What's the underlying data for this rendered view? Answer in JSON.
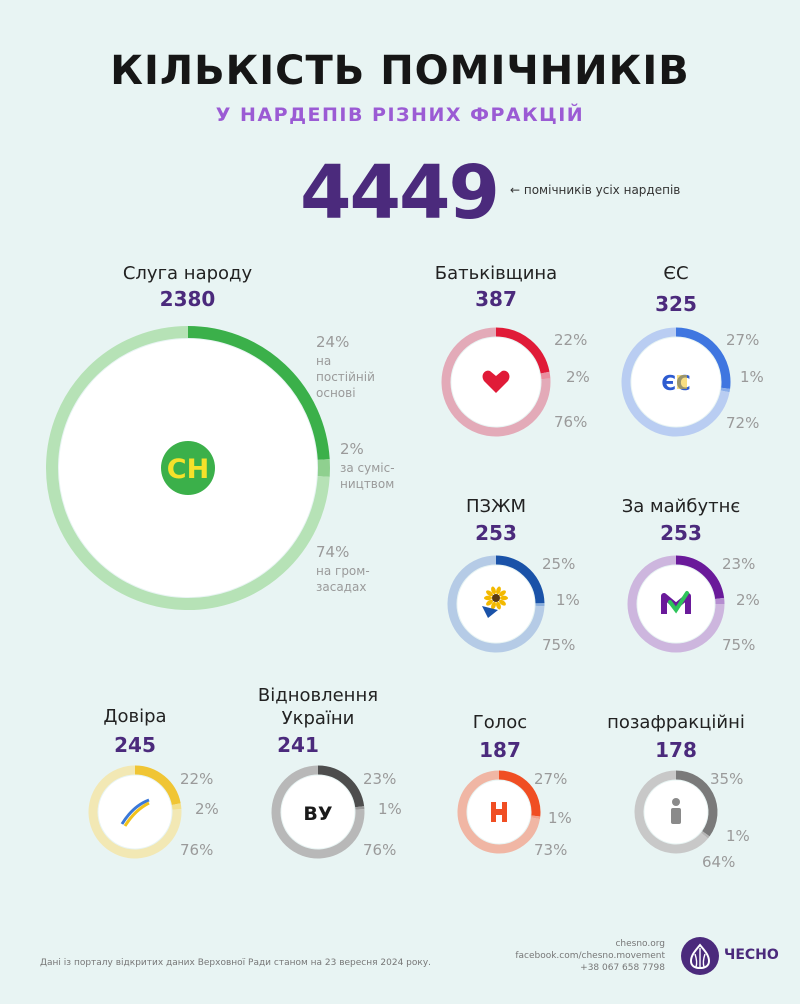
{
  "title": "КІЛЬКІСТЬ ПОМІЧНИКІВ",
  "subtitle": "У НАРДЕПІВ РІЗНИХ ФРАКЦІЙ",
  "total": {
    "value": "4449",
    "note": "← помічників усіх нардепів"
  },
  "colors": {
    "background": "#e8f4f3",
    "accent": "#4b2a7c",
    "subtitle": "#9b5bd4"
  },
  "chart_data": {
    "type": "pie",
    "title": "КІЛЬКІСТЬ ПОМІЧНИКІВ",
    "subtitle": "У НАРДЕПІВ РІЗНИХ ФРАКЦІЙ",
    "legend_categories": [
      "на постійній основі",
      "за суміс-ництвом",
      "на гром-засадах"
    ],
    "factions": [
      {
        "name": "Слуга народу",
        "count": 2380,
        "percents": [
          24,
          2,
          74
        ],
        "labels": [
          "24%",
          "2%",
          "74%"
        ],
        "notes": [
          "на постійній основі",
          "за суміс-ництвом",
          "на гром-засадах"
        ],
        "colors": [
          "#3bb04a",
          "#8fd08f",
          "#b6e2b6"
        ],
        "logo_text": "СН",
        "logo_icon": "sluha-narodu-logo"
      },
      {
        "name": "Батьківщина",
        "count": 387,
        "percents": [
          22,
          2,
          76
        ],
        "labels": [
          "22%",
          "2%",
          "76%"
        ],
        "colors": [
          "#e01b38",
          "#e98fa0",
          "#e3aab8"
        ],
        "logo_text": "",
        "logo_icon": "heart-icon"
      },
      {
        "name": "ЄС",
        "count": 325,
        "percents": [
          27,
          1,
          72
        ],
        "labels": [
          "27%",
          "1%",
          "72%"
        ],
        "colors": [
          "#3f76e0",
          "#8aaeea",
          "#b9cdf2"
        ],
        "logo_text": "ЄС",
        "logo_icon": "eu-logo"
      },
      {
        "name": "ПЗЖМ",
        "count": 253,
        "percents": [
          25,
          1,
          75
        ],
        "labels": [
          "25%",
          "1%",
          "75%"
        ],
        "colors": [
          "#1a52a8",
          "#8aaedc",
          "#b5cbe6"
        ],
        "logo_text": "",
        "logo_icon": "sunflower-icon"
      },
      {
        "name": "За майбутнє",
        "count": 253,
        "percents": [
          23,
          2,
          75
        ],
        "labels": [
          "23%",
          "2%",
          "75%"
        ],
        "colors": [
          "#6a1a9a",
          "#b58dd0",
          "#cdb6de"
        ],
        "logo_text": "",
        "logo_icon": "checkmark-m-icon"
      },
      {
        "name": "Довіра",
        "count": 245,
        "percents": [
          22,
          2,
          76
        ],
        "labels": [
          "22%",
          "2%",
          "76%"
        ],
        "colors": [
          "#f0c534",
          "#f3e08c",
          "#f2e8b4"
        ],
        "logo_text": "",
        "logo_icon": "swoosh-icon"
      },
      {
        "name": "Відновлення України",
        "count": 241,
        "percents": [
          23,
          1,
          76
        ],
        "labels": [
          "23%",
          "1%",
          "76%"
        ],
        "colors": [
          "#4d4d4d",
          "#9a9a9a",
          "#b8b8b8"
        ],
        "logo_text": "ВУ",
        "logo_icon": "vu-logo"
      },
      {
        "name": "Голос",
        "count": 187,
        "percents": [
          27,
          1,
          73
        ],
        "labels": [
          "27%",
          "1%",
          "73%"
        ],
        "colors": [
          "#f04e23",
          "#f2a08a",
          "#f0b6a4"
        ],
        "logo_text": "",
        "logo_icon": "holos-icon"
      },
      {
        "name": "позафракційні",
        "count": 178,
        "percents": [
          35,
          1,
          64
        ],
        "labels": [
          "35%",
          "1%",
          "64%"
        ],
        "colors": [
          "#7a7a7a",
          "#b4b4b4",
          "#c8c8c8"
        ],
        "logo_text": "",
        "logo_icon": "person-icon"
      }
    ]
  },
  "footer": {
    "source": "Дані із порталу відкритих даних Верховної Ради станом на 23 вересня 2024 року.",
    "site": "chesno.org",
    "facebook": "facebook.com/chesno.movement",
    "phone": "+38 067 658 7798",
    "brand": "ЧЕСНО",
    "brand_icon": "chesno-garlic-logo"
  }
}
